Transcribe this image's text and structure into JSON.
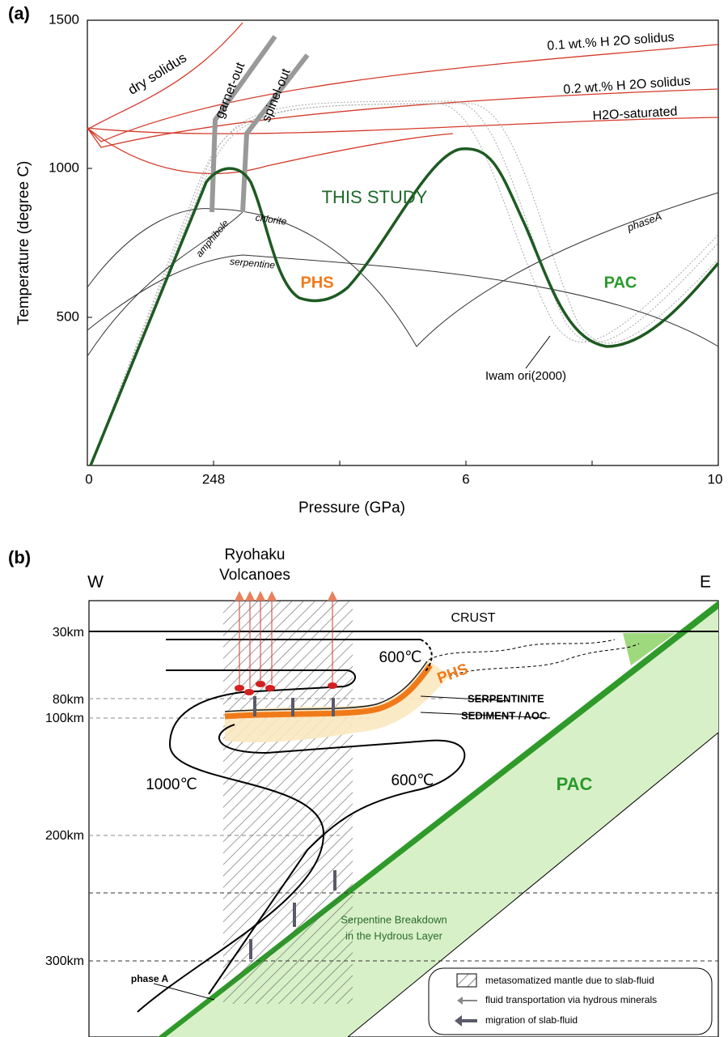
{
  "panel_a": {
    "label": "(a)",
    "x_axis_label": "Pressure (GPa)",
    "y_axis_label": "Temperature (degree C)",
    "x_ticks": [
      "0",
      "248",
      "6",
      "10"
    ],
    "y_ticks": [
      "1500",
      "1000",
      "500"
    ],
    "curve_labels": {
      "dry": "dry solidus",
      "garnet": "garnet-out",
      "spinel": "spinel-out",
      "wt01": "0.1 wt.% H 2O solidus",
      "wt02": "0.2 wt.% H 2O solidus",
      "saturated": "H2O-saturated",
      "study": "THIS STUDY",
      "amphibole": "amphibole",
      "chlorite": "chlorite",
      "serpentine": "serpentine",
      "phs": "PHS",
      "pac": "PAC",
      "phaseA": "phaseA",
      "iwamori": "Iwam ori(2000)"
    }
  },
  "panel_b": {
    "label": "(b)",
    "volcano_label": [
      "Ryohaku",
      "Volcanoes"
    ],
    "west": "W",
    "east": "E",
    "crust": "CRUST",
    "depths": [
      "30km",
      "80km",
      "100km",
      "200km",
      "300km"
    ],
    "isotherms": [
      "600℃",
      "600℃",
      "1000℃"
    ],
    "phs": "PHS",
    "layers": [
      "SERPENTINITE",
      "SEDIMENT / AOC"
    ],
    "pac": "PAC",
    "breakdown": [
      "Serpentine Breakdown",
      "in the Hydrous Layer"
    ],
    "phase_a": "phase A",
    "legend": [
      "metasomatized mantle due to slab-fluid",
      "fluid transportation via hydrous minerals",
      "migration of slab-fluid"
    ]
  }
}
